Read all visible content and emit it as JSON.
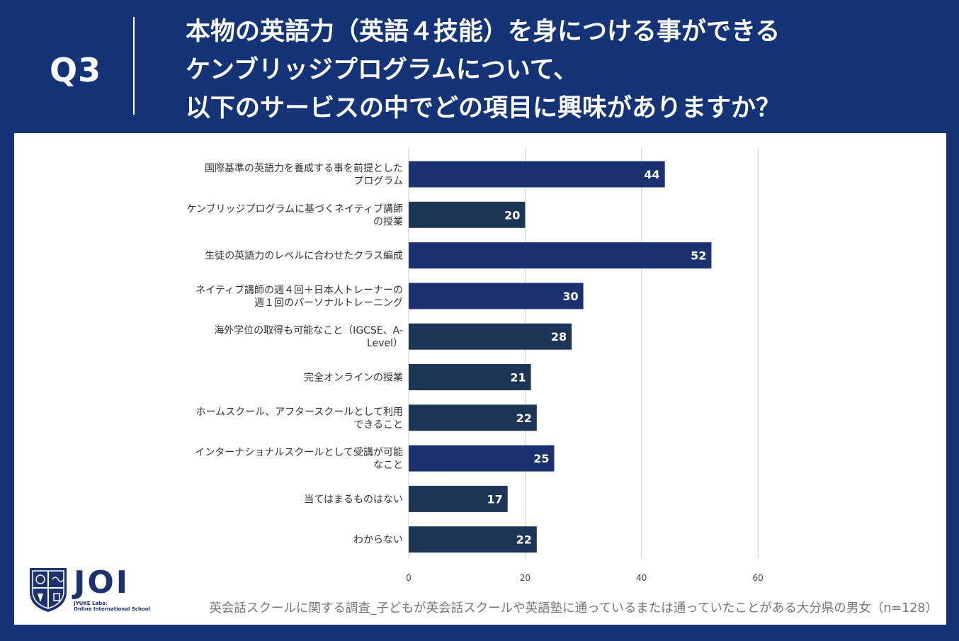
{
  "header": {
    "q_label": "Q3",
    "question_lines": [
      "本物の英語力（英語４技能）を身につける事ができる",
      "ケンブリッジプログラムについて、",
      "以下のサービスの中でどの項目に興味がありますか？"
    ]
  },
  "colors": {
    "background": "#153478",
    "bar_primary": "#1c3170",
    "bar_secondary": "#1d3557",
    "gridline": "#cccccc"
  },
  "chart_data": {
    "type": "bar",
    "orientation": "horizontal",
    "categories": [
      [
        "国際基準の英語力を養成する事を前提とした",
        "プログラム"
      ],
      [
        "ケンブリッジプログラムに基づくネイティブ講師",
        "の授業"
      ],
      [
        "生徒の英語力のレベルに合わせたクラス編成"
      ],
      [
        "ネイティブ講師の週４回＋日本人トレーナーの",
        "週１回のパーソナルトレーニング"
      ],
      [
        "海外学位の取得も可能なこと（IGCSE、A-",
        "Level）"
      ],
      [
        "完全オンラインの授業"
      ],
      [
        "ホームスクール、アフタースクールとして利用",
        "できること"
      ],
      [
        "インターナショナルスクールとして受講が可能",
        "なこと"
      ],
      [
        "当てはまるものはない"
      ],
      [
        "わからない"
      ]
    ],
    "values": [
      44,
      20,
      52,
      30,
      28,
      21,
      22,
      25,
      17,
      22
    ],
    "bar_colors": [
      "#1c3170",
      "#1d3557",
      "#1c3170",
      "#1c3170",
      "#1d3557",
      "#1d3557",
      "#1d3557",
      "#1c3170",
      "#1d3557",
      "#1d3557"
    ],
    "xlim": [
      0,
      60
    ],
    "x_ticks": [
      0,
      20,
      40,
      60
    ],
    "grid": true,
    "title": "",
    "xlabel": "",
    "ylabel": ""
  },
  "logo": {
    "text": "JOI",
    "sub1": "JYUKE Labo.",
    "sub2": "Online International School"
  },
  "footer": {
    "note": "英会話スクールに関する調査_子どもが英会話スクールや英語塾に通っているまたは通っていたことがある大分県の男女（n=128）"
  }
}
